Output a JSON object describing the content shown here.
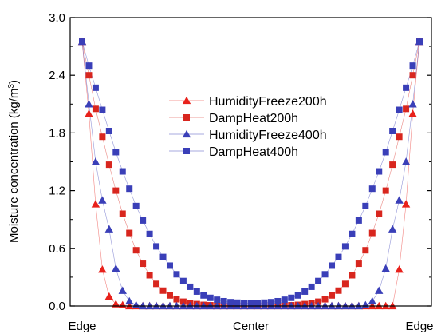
{
  "chart_data": {
    "type": "line",
    "ylabel": "Moisture concentration (kg/m",
    "ylabel_sup": "3",
    "ylabel_end": ")",
    "ylim": [
      0,
      3.0
    ],
    "yticks": [
      "0.0",
      "0.6",
      "1.2",
      "1.8",
      "2.4",
      "3.0"
    ],
    "xticks": [
      "Edge",
      "Center",
      "Edge"
    ],
    "legend_position": "center",
    "x": [
      0,
      0.02,
      0.04,
      0.06,
      0.08,
      0.1,
      0.12,
      0.14,
      0.16,
      0.18,
      0.2,
      0.22,
      0.24,
      0.26,
      0.28,
      0.3,
      0.32,
      0.34,
      0.36,
      0.38,
      0.4,
      0.42,
      0.44,
      0.46,
      0.48,
      0.5,
      0.52,
      0.54,
      0.56,
      0.58,
      0.6,
      0.62,
      0.64,
      0.66,
      0.68,
      0.7,
      0.72,
      0.74,
      0.76,
      0.78,
      0.8,
      0.82,
      0.84,
      0.86,
      0.88,
      0.9,
      0.92,
      0.94,
      0.96,
      0.98,
      1.0
    ],
    "series": [
      {
        "name": "HumidityFreeze200h",
        "color": "#e8211b",
        "marker": "triangle",
        "values": [
          2.75,
          2.0,
          1.06,
          0.38,
          0.1,
          0.02,
          0.01,
          0.0,
          0.0,
          0.0,
          0.0,
          0.0,
          0.0,
          0.0,
          0.0,
          0.0,
          0.0,
          0.0,
          0.0,
          0.0,
          0.0,
          0.0,
          0.0,
          0.0,
          0.0,
          0.0,
          0.0,
          0.0,
          0.0,
          0.0,
          0.0,
          0.0,
          0.0,
          0.0,
          0.0,
          0.0,
          0.0,
          0.0,
          0.0,
          0.0,
          0.0,
          0.0,
          0.0,
          0.0,
          0.0,
          0.0,
          0.0,
          0.38,
          1.06,
          2.0,
          2.75
        ]
      },
      {
        "name": "DampHeat200h",
        "color": "#d8261e",
        "marker": "square",
        "values": [
          2.75,
          2.4,
          2.05,
          1.76,
          1.47,
          1.2,
          0.96,
          0.76,
          0.58,
          0.44,
          0.32,
          0.23,
          0.16,
          0.11,
          0.07,
          0.045,
          0.03,
          0.02,
          0.012,
          0.008,
          0.005,
          0.003,
          0.002,
          0.001,
          0.0,
          0.0,
          0.0,
          0.001,
          0.002,
          0.003,
          0.005,
          0.008,
          0.012,
          0.02,
          0.03,
          0.045,
          0.07,
          0.11,
          0.16,
          0.23,
          0.32,
          0.44,
          0.58,
          0.76,
          0.96,
          1.2,
          1.47,
          1.76,
          2.05,
          2.4,
          2.75
        ]
      },
      {
        "name": "HumidityFreeze400h",
        "color": "#3a3fb8",
        "marker": "triangle",
        "values": [
          2.75,
          2.1,
          1.5,
          1.1,
          0.8,
          0.39,
          0.16,
          0.05,
          0.01,
          0.0,
          0.0,
          0.0,
          0.0,
          0.0,
          0.0,
          0.0,
          0.0,
          0.0,
          0.0,
          0.0,
          0.0,
          0.0,
          0.0,
          0.0,
          0.0,
          0.0,
          0.0,
          0.0,
          0.0,
          0.0,
          0.0,
          0.0,
          0.0,
          0.0,
          0.0,
          0.0,
          0.0,
          0.0,
          0.0,
          0.0,
          0.0,
          0.0,
          0.01,
          0.05,
          0.16,
          0.39,
          0.8,
          1.1,
          1.5,
          2.1,
          2.75
        ]
      },
      {
        "name": "DampHeat400h",
        "color": "#3a3fb8",
        "marker": "square",
        "values": [
          2.75,
          2.5,
          2.27,
          2.04,
          1.82,
          1.6,
          1.4,
          1.22,
          1.04,
          0.89,
          0.75,
          0.62,
          0.51,
          0.42,
          0.33,
          0.26,
          0.2,
          0.15,
          0.11,
          0.085,
          0.065,
          0.05,
          0.04,
          0.035,
          0.03,
          0.03,
          0.03,
          0.035,
          0.04,
          0.05,
          0.065,
          0.085,
          0.11,
          0.15,
          0.2,
          0.26,
          0.33,
          0.42,
          0.51,
          0.62,
          0.75,
          0.89,
          1.04,
          1.22,
          1.4,
          1.6,
          1.82,
          2.04,
          2.27,
          2.5,
          2.75
        ]
      }
    ]
  }
}
